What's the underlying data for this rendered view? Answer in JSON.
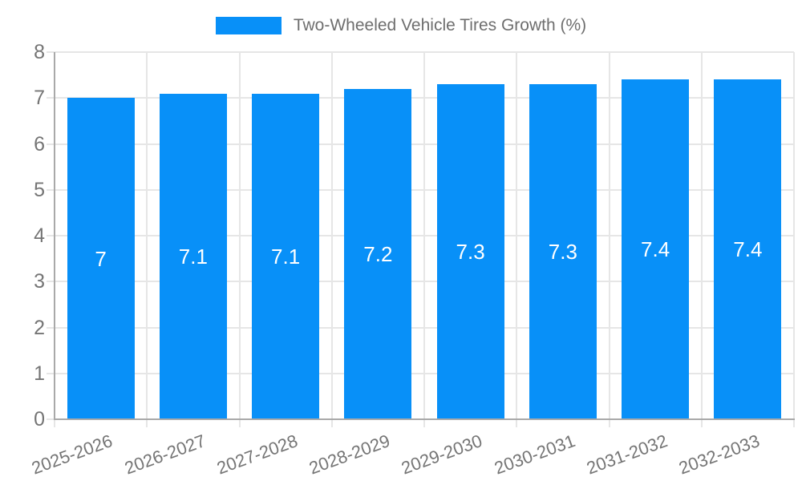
{
  "chart_data": {
    "type": "bar",
    "title": "Two-Wheeled Vehicle Tires Growth (%)",
    "legend": {
      "label": "Two-Wheeled Vehicle Tires Growth (%)",
      "position": "top"
    },
    "categories": [
      "2025-2026",
      "2026-2027",
      "2027-2028",
      "2028-2029",
      "2029-2030",
      "2030-2031",
      "2031-2032",
      "2032-2033"
    ],
    "series": [
      {
        "name": "Two-Wheeled Vehicle Tires Growth (%)",
        "values": [
          7,
          7.1,
          7.1,
          7.2,
          7.3,
          7.3,
          7.4,
          7.4
        ]
      }
    ],
    "xlabel": "",
    "ylabel": "",
    "ylim": [
      0,
      8
    ],
    "yticks": [
      0,
      1,
      2,
      3,
      4,
      5,
      6,
      7,
      8
    ],
    "grid": true,
    "bar_labels_shown": true,
    "x_label_rotation_deg": -20,
    "colors": {
      "bar": "#0890f8",
      "bar_label": "#ffffff",
      "tick_label": "#757575",
      "legend_label": "#6e6e6e",
      "grid": "#e6e6e6",
      "axis": "#a9a9a9",
      "background": "#ffffff"
    }
  }
}
